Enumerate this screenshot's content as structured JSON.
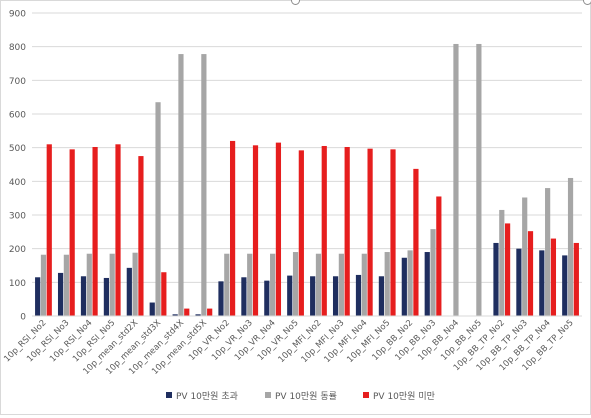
{
  "chart_data": {
    "type": "bar",
    "title": "",
    "xlabel": "",
    "ylabel": "",
    "ylim": [
      0,
      900
    ],
    "yticks": [
      0,
      100,
      200,
      300,
      400,
      500,
      600,
      700,
      800,
      900
    ],
    "grid": true,
    "legend_position": "bottom",
    "categories": [
      "10p_RSI_No2",
      "10p_RSI_No3",
      "10p_RSI_No4",
      "10p_RSI_No5",
      "10p_mean_std2X",
      "10p_mean_std3X",
      "10p_mean_std4X",
      "10p_mean_std5X",
      "10p_VR_No2",
      "10p_VR_No3",
      "10p_VR_No4",
      "10p_VR_No5",
      "10p_MFI_No2",
      "10p_MFI_No3",
      "10p_MFI_No4",
      "10p_MFI_No5",
      "10p_BB_No2",
      "10p_BB_No3",
      "10p_BB_No4",
      "10p_BB_No5",
      "10p_BB_TP_No2",
      "10p_BB_TP_No3",
      "10p_BB_TP_No4",
      "10p_BB_TP_No5"
    ],
    "series": [
      {
        "name": "PV 10만원 초과",
        "color": "#1f2e5f",
        "values": [
          115,
          128,
          118,
          113,
          143,
          40,
          5,
          5,
          103,
          115,
          105,
          120,
          118,
          118,
          122,
          118,
          173,
          190,
          0,
          0,
          217,
          200,
          195,
          180
        ]
      },
      {
        "name": "PV 10만원 동률",
        "color": "#a6a6a6",
        "values": [
          182,
          182,
          185,
          185,
          188,
          635,
          778,
          778,
          185,
          185,
          185,
          190,
          185,
          185,
          185,
          190,
          195,
          258,
          808,
          808,
          315,
          352,
          380,
          410
        ]
      },
      {
        "name": "PV 10만원 미만",
        "color": "#e61e1e",
        "values": [
          510,
          495,
          502,
          510,
          475,
          130,
          22,
          22,
          520,
          507,
          515,
          492,
          505,
          502,
          497,
          495,
          437,
          355,
          0,
          0,
          275,
          252,
          230,
          217
        ]
      }
    ]
  }
}
